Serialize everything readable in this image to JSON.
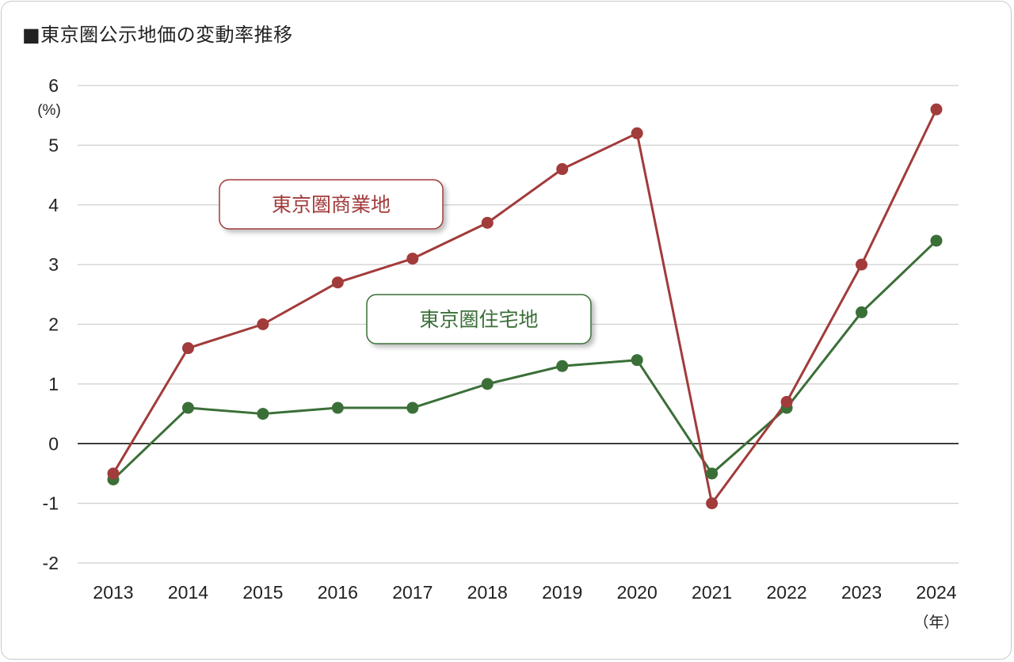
{
  "title": "■東京圏公示地価の変動率推移",
  "chart_data": {
    "type": "line",
    "title": "■東京圏公示地価の変動率推移",
    "y_unit": "(%)",
    "x_unit": "（年）",
    "x": [
      "2013",
      "2014",
      "2015",
      "2016",
      "2017",
      "2018",
      "2019",
      "2020",
      "2021",
      "2022",
      "2023",
      "2024"
    ],
    "ylim": [
      -2,
      6
    ],
    "yticks": [
      "6",
      "5",
      "4",
      "3",
      "2",
      "1",
      "0",
      "-1",
      "-2"
    ],
    "grid": true,
    "series": [
      {
        "name": "東京圏商業地",
        "color": "#a23b3b",
        "values": [
          -0.5,
          1.6,
          2.0,
          2.7,
          3.1,
          3.7,
          4.6,
          5.2,
          -1.0,
          0.7,
          3.0,
          5.6
        ]
      },
      {
        "name": "東京圏住宅地",
        "color": "#3b6f38",
        "values": [
          -0.6,
          0.6,
          0.5,
          0.6,
          0.6,
          1.0,
          1.3,
          1.4,
          -0.5,
          0.6,
          2.2,
          3.4
        ]
      }
    ]
  }
}
